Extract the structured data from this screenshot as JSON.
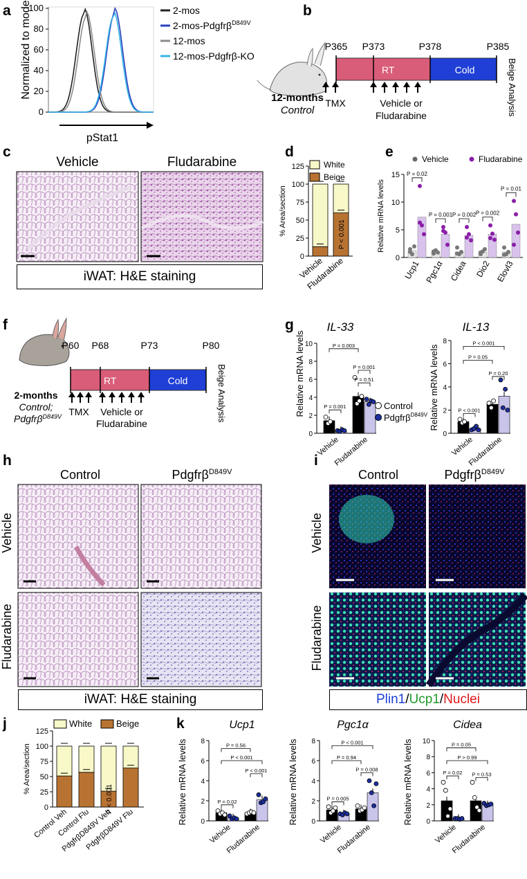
{
  "panels": {
    "a": {
      "letter": "a",
      "ylabel": "Normalized to mode",
      "xlabel": "pStat1",
      "yticks": [
        "0",
        "20",
        "40",
        "60",
        "80",
        "100"
      ],
      "legend": [
        {
          "label": "2-mos",
          "sup": "",
          "color": "#222222"
        },
        {
          "label": "2-mos-Pdgfrβ",
          "sup": "D849V",
          "color": "#2a3fbf"
        },
        {
          "label": "12-mos",
          "sup": "",
          "color": "#8c8c8c"
        },
        {
          "label": "12-mos-Pdgfrβ-KO",
          "sup": "",
          "color": "#35b3e6"
        }
      ]
    },
    "b": {
      "letter": "b",
      "timepoints": [
        "P365",
        "P373",
        "P378",
        "P385"
      ],
      "rt_label": "RT",
      "cold_label": "Cold",
      "analysis_label": "Beige Analysis",
      "cohort_line1": "12-months",
      "cohort_line2": "Control",
      "tmx_label": "TMX",
      "treatment_line1": "Vehicle or",
      "treatment_line2": "Fludarabine"
    },
    "c": {
      "letter": "c",
      "col_labels": [
        "Vehicle",
        "Fludarabine"
      ],
      "caption": "iWAT: H&E staining"
    },
    "d": {
      "letter": "d",
      "legend": [
        "White",
        "Beige"
      ],
      "pvalue": "P < 0.001",
      "ylabel": "% Area/section"
    },
    "e": {
      "letter": "e",
      "legend": [
        "Vehicle",
        "Fludarabine"
      ],
      "ylabel": "Relative mRNA levels",
      "pvalues": [
        "P = 0.02",
        "P = 0.001",
        "P = 0.002",
        "P = 0.002",
        "P = 0.01"
      ]
    },
    "f": {
      "letter": "f",
      "timepoints": [
        "P60",
        "P68",
        "P73",
        "P80"
      ],
      "rt_label": "RT",
      "cold_label": "Cold",
      "analysis_label": "Beige Analysis",
      "cohort_line1": "2-months",
      "cohort_line2": "Control;",
      "cohort_line3": "Pdgfrβ",
      "cohort_line3_sup": "D849V",
      "tmx_label": "TMX",
      "treatment_line1": "Vehicle or",
      "treatment_line2": "Fludarabine"
    },
    "g": {
      "letter": "g",
      "title_left": "IL-33",
      "title_right": "IL-13",
      "ylabel": "Relative mRNA levels",
      "legend": [
        {
          "label": "Control",
          "sup": ""
        },
        {
          "label": "Pdgfrβ",
          "sup": "D849V"
        }
      ],
      "pvalues_left": [
        "P = 0.003",
        "P = 0.001",
        "P = 0.51",
        "P = 0.001"
      ],
      "pvalues_right": [
        "P < 0.001",
        "P = 0.05",
        "P = 0.20",
        "P < 0.001"
      ]
    },
    "h": {
      "letter": "h",
      "col_labels": [
        "Control",
        "Pdgfrβ"
      ],
      "col_sup": "D849V",
      "row_labels": [
        "Vehicle",
        "Fludarabine"
      ],
      "caption": "iWAT: H&E staining"
    },
    "i": {
      "letter": "i",
      "col_labels": [
        "Control",
        "Pdgfrβ"
      ],
      "col_sup": "D849V",
      "row_labels": [
        "Vehicle",
        "Fludarabine"
      ],
      "caption_parts": [
        {
          "text": "Plin1",
          "color": "#1a3fd6"
        },
        {
          "text": "/",
          "color": "#000000"
        },
        {
          "text": "Ucp1",
          "color": "#1e9a2a"
        },
        {
          "text": "/",
          "color": "#000000"
        },
        {
          "text": "Nuclei",
          "color": "#e01818"
        }
      ]
    },
    "j": {
      "letter": "j",
      "legend": [
        "White",
        "Beige"
      ],
      "pvalue": "P < 0.001",
      "ylabel": "% Area/section"
    },
    "k": {
      "letter": "k",
      "titles": [
        "Ucp1",
        "Pgc1α",
        "Cidea"
      ],
      "ylabel": "Relative mRNA levels",
      "pvalues": [
        [
          "P = 0.56",
          "P < 0.001",
          "P < 0.001",
          "P = 0.02"
        ],
        [
          "P < 0.001",
          "P = 0.94",
          "P = 0.008",
          "P = 0.005"
        ],
        [
          "P = 0.05",
          "P > 0.99",
          "P = 0.53",
          "P = 0.02"
        ]
      ]
    }
  },
  "chart_data": [
    {
      "type": "line",
      "panel": "a",
      "xlabel": "pStat1",
      "ylabel": "Normalized to mode",
      "ylim": [
        0,
        100
      ],
      "series": [
        {
          "name": "2-mos",
          "peak_position": 0.34,
          "peak_height": 100
        },
        {
          "name": "2-mos-PdgfrβD849V",
          "peak_position": 0.63,
          "peak_height": 100
        },
        {
          "name": "12-mos",
          "peak_position": 0.36,
          "peak_height": 97
        },
        {
          "name": "12-mos-Pdgfrβ-KO",
          "peak_position": 0.62,
          "peak_height": 97
        }
      ]
    },
    {
      "type": "bar",
      "panel": "d",
      "ylabel": "% Area/section",
      "ylim": [
        0,
        125
      ],
      "yticks": [
        0,
        25,
        50,
        75,
        100,
        125
      ],
      "categories": [
        "Vehicle",
        "Fludarabine"
      ],
      "series": [
        {
          "name": "Beige",
          "values": [
            13,
            60
          ]
        },
        {
          "name": "White",
          "values": [
            87,
            40
          ]
        }
      ]
    },
    {
      "type": "bar",
      "panel": "e",
      "ylabel": "Relative mRNA levels",
      "ylim": [
        0,
        15
      ],
      "yticks": [
        0,
        5,
        10,
        15
      ],
      "categories": [
        "Ucp1",
        "Pgc1α",
        "Cidea",
        "Dio2",
        "Elovl3"
      ],
      "series": [
        {
          "name": "Vehicle",
          "values": [
            1.2,
            1.0,
            1.0,
            1.0,
            1.0
          ]
        },
        {
          "name": "Fludarabine",
          "values": [
            7.3,
            4.2,
            4.0,
            4.2,
            6.0
          ]
        }
      ],
      "points": {
        "Vehicle": [
          [
            1.5,
            0.6,
            2.0,
            1.0
          ],
          [
            0.7,
            1.3,
            0.9,
            1.1
          ],
          [
            1.8,
            0.6,
            1.0,
            0.7
          ],
          [
            0.6,
            1.1,
            1.5,
            0.9
          ],
          [
            1.8,
            0.6,
            1.0,
            0.5
          ]
        ],
        "Fludarabine": [
          [
            12.9,
            5.8,
            4.2,
            6.3
          ],
          [
            5.5,
            4.5,
            2.3,
            4.8
          ],
          [
            5.5,
            4.2,
            3.1,
            3.6
          ],
          [
            5.8,
            4.3,
            3.2,
            3.5
          ],
          [
            10.2,
            7.8,
            4.5,
            2.3
          ]
        ]
      }
    },
    {
      "type": "bar",
      "panel": "g-IL-33",
      "ylabel": "Relative mRNA levels",
      "ylim": [
        0,
        10
      ],
      "yticks": [
        0,
        2,
        4,
        6,
        8,
        10
      ],
      "categories": [
        "Vehicle",
        "Fludarabine"
      ],
      "series": [
        {
          "name": "Control",
          "values": [
            1.4,
            4.1
          ]
        },
        {
          "name": "PdgfrβD849V",
          "values": [
            0.3,
            3.5
          ]
        }
      ],
      "points": {
        "Control": [
          [
            1.8,
            1.1,
            1.3
          ],
          [
            6.2,
            3.3,
            3.6,
            4.1
          ]
        ],
        "PdgfrβD849V": [
          [
            0.3,
            0.2,
            0.4,
            0.3
          ],
          [
            3.8,
            3.2,
            3.6,
            3.5
          ]
        ]
      }
    },
    {
      "type": "bar",
      "panel": "g-IL-13",
      "ylabel": "Relative mRNA levels",
      "ylim": [
        0,
        8
      ],
      "yticks": [
        0,
        2,
        4,
        6,
        8
      ],
      "categories": [
        "Vehicle",
        "Fludarabine"
      ],
      "series": [
        {
          "name": "Control",
          "values": [
            1.0,
            2.5
          ]
        },
        {
          "name": "PdgfrβD849V",
          "values": [
            0.4,
            3.2
          ]
        }
      ],
      "points": {
        "Control": [
          [
            1.2,
            0.9,
            1.0
          ],
          [
            2.6,
            2.2,
            2.8
          ]
        ],
        "PdgfrβD849V": [
          [
            0.3,
            0.4,
            0.6,
            0.3
          ],
          [
            4.6,
            2.2,
            3.8,
            2.0
          ]
        ]
      }
    },
    {
      "type": "bar",
      "panel": "j",
      "ylabel": "% Area/section",
      "ylim": [
        0,
        125
      ],
      "yticks": [
        0,
        25,
        50,
        75,
        100,
        125
      ],
      "categories": [
        "Control Veh",
        "Control Flu",
        "PdgfrβD849V Veh",
        "PdgfrβD849V Flu"
      ],
      "series": [
        {
          "name": "Beige",
          "values": [
            51,
            57,
            26,
            64
          ]
        },
        {
          "name": "White",
          "values": [
            49,
            43,
            74,
            36
          ]
        }
      ]
    },
    {
      "type": "bar",
      "panel": "k-Ucp1",
      "ylabel": "Relative mRNA levels",
      "ylim": [
        0,
        8
      ],
      "yticks": [
        0,
        2,
        4,
        6,
        8
      ],
      "categories": [
        "Vehicle",
        "Fludarabine"
      ],
      "series": [
        {
          "name": "Control",
          "values": [
            0.8,
            0.8
          ]
        },
        {
          "name": "PdgfrβD849V",
          "values": [
            0.3,
            2.1
          ]
        }
      ],
      "points": {
        "Control": [
          [
            1.0,
            0.7,
            0.8,
            0.6
          ],
          [
            0.7,
            0.8,
            0.9,
            0.8
          ]
        ],
        "PdgfrβD849V": [
          [
            0.5,
            0.2,
            0.3,
            0.2
          ],
          [
            2.6,
            1.8,
            1.9,
            2.2
          ]
        ]
      }
    },
    {
      "type": "bar",
      "panel": "k-Pgc1α",
      "ylabel": "Relative mRNA levels",
      "ylim": [
        0,
        8
      ],
      "yticks": [
        0,
        2,
        4,
        6,
        8
      ],
      "categories": [
        "Vehicle",
        "Fludarabine"
      ],
      "series": [
        {
          "name": "Control",
          "values": [
            1.1,
            1.2
          ]
        },
        {
          "name": "PdgfrβD849V",
          "values": [
            0.7,
            2.8
          ]
        }
      ],
      "points": {
        "Control": [
          [
            1.4,
            0.8,
            1.0,
            1.3
          ],
          [
            1.5,
            1.0,
            1.1,
            1.3
          ]
        ],
        "PdgfrβD849V": [
          [
            0.7,
            0.6,
            0.8,
            0.7
          ],
          [
            4.0,
            2.8,
            1.5,
            3.7
          ]
        ]
      }
    },
    {
      "type": "bar",
      "panel": "k-Cidea",
      "ylabel": "Relative mRNA levels",
      "ylim": [
        0,
        10
      ],
      "yticks": [
        0,
        2,
        4,
        6,
        8,
        10
      ],
      "categories": [
        "Vehicle",
        "Fludarabine"
      ],
      "series": [
        {
          "name": "Control",
          "values": [
            2.5,
            2.5
          ]
        },
        {
          "name": "PdgfrβD849V",
          "values": [
            0.3,
            2.0
          ]
        }
      ],
      "points": {
        "Control": [
          [
            4.8,
            3.8,
            0.6,
            1.5
          ],
          [
            4.8,
            2.9,
            1.7,
            1.3
          ]
        ],
        "PdgfrβD849V": [
          [
            0.3,
            0.3,
            0.2,
            0.3
          ],
          [
            2.2,
            1.9,
            2.0,
            2.1
          ]
        ]
      }
    }
  ]
}
